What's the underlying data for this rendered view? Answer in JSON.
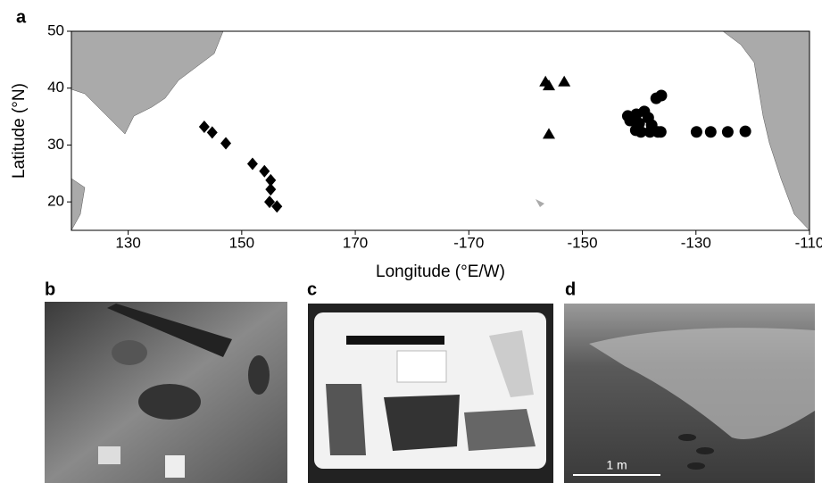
{
  "chart_data": {
    "type": "scatter",
    "xlabel": "Longitude (°E/W)",
    "ylabel": "Latitude (°N)",
    "xlim": [
      120,
      250
    ],
    "ylim": [
      15,
      50
    ],
    "xticks": [
      130,
      150,
      170,
      {
        "value": 190,
        "label": "-170"
      },
      {
        "value": 210,
        "label": "-150"
      },
      {
        "value": 230,
        "label": "-130"
      },
      {
        "value": 250,
        "label": "-110"
      }
    ],
    "yticks": [
      20,
      30,
      40,
      50
    ],
    "series": [
      {
        "marker": "diamond",
        "color": "#000000",
        "x": [
          143.4,
          144.8,
          147.2,
          151.9,
          154.0,
          155.1,
          155.1,
          154.9,
          156.2
        ],
        "values": [
          33.2,
          32.2,
          30.3,
          26.7,
          25.4,
          23.8,
          22.2,
          20.0,
          19.2
        ]
      },
      {
        "marker": "triangle",
        "color": "#000000",
        "x": [
          203.5,
          204.1,
          206.8,
          204.1
        ],
        "values": [
          41.1,
          40.4,
          41.1,
          31.9
        ]
      },
      {
        "marker": "circle",
        "color": "#000000",
        "x": [
          218.0,
          218.4,
          219.5,
          220.0,
          220.9,
          221.6,
          222.2,
          219.4,
          220.3,
          221.9,
          223.3,
          223.8,
          223.0,
          223.9,
          230.1,
          232.6,
          235.6,
          238.7
        ],
        "values": [
          35.1,
          34.3,
          35.4,
          33.8,
          35.9,
          34.8,
          33.5,
          32.6,
          32.3,
          32.3,
          32.3,
          32.3,
          38.2,
          38.7,
          32.3,
          32.3,
          32.3,
          32.4
        ]
      }
    ]
  },
  "panels": {
    "a": "a",
    "b": "b",
    "c": "c",
    "d": "d"
  },
  "scale_bar": "1 m"
}
